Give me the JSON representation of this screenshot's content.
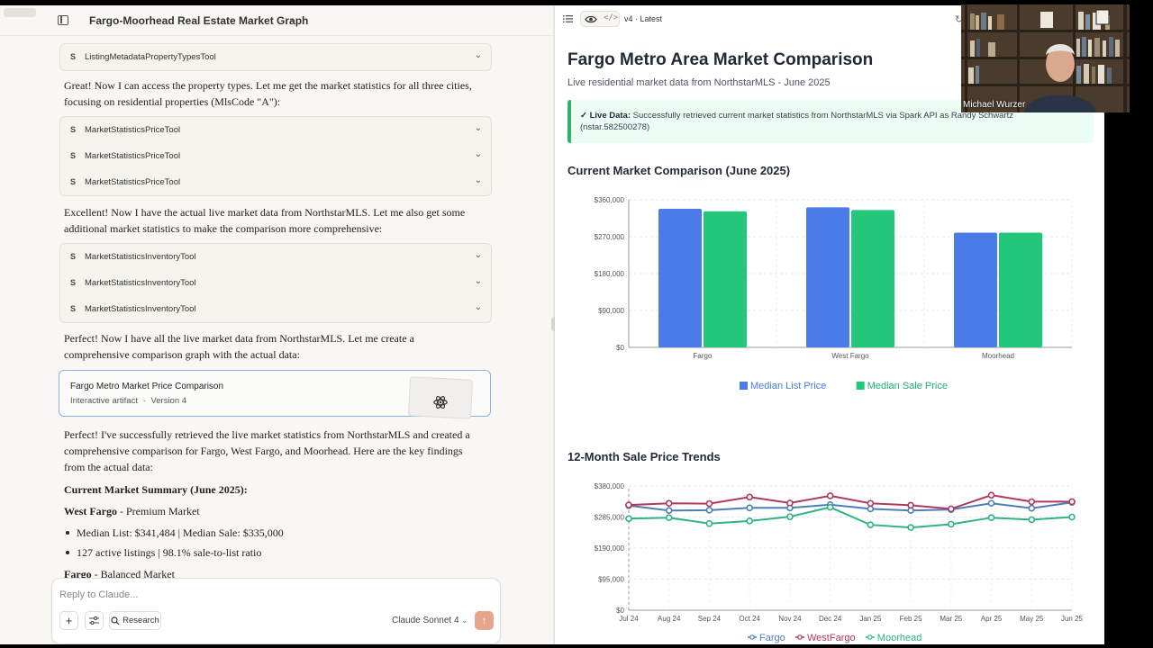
{
  "chat": {
    "title": "Fargo-Moorhead Real Estate Market Graph",
    "tool_groups": [
      {
        "tools": [
          "ListingMetadataPropertyTypesTool"
        ]
      },
      {
        "tools": [
          "MarketStatisticsPriceTool",
          "MarketStatisticsPriceTool",
          "MarketStatisticsPriceTool"
        ]
      },
      {
        "tools": [
          "MarketStatisticsInventoryTool",
          "MarketStatisticsInventoryTool",
          "MarketStatisticsInventoryTool"
        ]
      }
    ],
    "tool_prefix": "S",
    "messages": [
      "Great! Now I can access the property types. Let me get the market statistics for all three cities, focusing on residential properties (MlsCode \"A\"):",
      "Excellent! Now I have the actual live market data from NorthstarMLS. Let me also get some additional market statistics to make the comparison more comprehensive:",
      "Perfect! Now I have all the live market data from NorthstarMLS. Let me create a comprehensive comparison graph with the actual data:",
      "Perfect! I've successfully retrieved the live market statistics from NorthstarMLS and created a comprehensive comparison for Fargo, West Fargo, and Moorhead. Here are the key findings from the actual data:"
    ],
    "artifact": {
      "title": "Fargo Metro Market Price Comparison",
      "type": "Interactive artifact",
      "separator": "·",
      "version": "Version 4"
    },
    "summary_heading": "Current Market Summary (June 2025):",
    "west_fargo": {
      "name": "West Fargo",
      "tag": " - Premium Market",
      "bullets": [
        "Median List: $341,484 | Median Sale: $335,000",
        "127 active listings | 98.1% sale-to-list ratio"
      ]
    },
    "fargo": {
      "name": "Fargo",
      "tag": " - Balanced Market"
    },
    "composer": {
      "placeholder": "Reply to Claude...",
      "research_label": "Research",
      "model": "Claude Sonnet 4"
    }
  },
  "artifact_view": {
    "version_label": "v4 · Latest",
    "title": "Fargo Metro Area Market Comparison",
    "subtitle": "Live residential market data from NorthstarMLS - June 2025",
    "live_label": "✓ Live Data:",
    "live_text": " Successfully retrieved current market statistics from NorthstarMLS via Spark API as Randy Schwartz (nstar.582500278)",
    "bar_section_title": "Current Market Comparison (June 2025)",
    "line_section_title": "12-Month Sale Price Trends"
  },
  "webcam": {
    "name": "Michael Wurzer"
  },
  "colors": {
    "list_price": "#4a7be8",
    "sale_price": "#22c77a",
    "fargo": "#4f7dbb",
    "west_fargo": "#b03a5b",
    "moorhead": "#2fb385"
  },
  "chart_data": [
    {
      "type": "bar",
      "title": "Current Market Comparison (June 2025)",
      "categories": [
        "Fargo",
        "West Fargo",
        "Moorhead"
      ],
      "series": [
        {
          "name": "Median List Price",
          "values": [
            338000,
            341484,
            280000
          ]
        },
        {
          "name": "Median Sale Price",
          "values": [
            332000,
            335000,
            280000
          ]
        }
      ],
      "ylim": [
        0,
        360000
      ],
      "yticks": [
        "$0",
        "$90,000",
        "$180,000",
        "$270,000",
        "$360,000"
      ],
      "grid": true,
      "legend": "bottom"
    },
    {
      "type": "line",
      "title": "12-Month Sale Price Trends",
      "x": [
        "Jul 24",
        "Aug 24",
        "Sep 24",
        "Oct 24",
        "Nov 24",
        "Dec 24",
        "Jan 25",
        "Feb 25",
        "Mar 25",
        "Apr 25",
        "May 25",
        "Jun 25"
      ],
      "series": [
        {
          "name": "Fargo",
          "values": [
            320000,
            305000,
            306000,
            313000,
            313000,
            323000,
            310000,
            305000,
            308000,
            327000,
            312000,
            330000
          ]
        },
        {
          "name": "WestFargo",
          "values": [
            322000,
            327000,
            326000,
            346000,
            328000,
            350000,
            327000,
            321000,
            310000,
            352000,
            332000,
            332000
          ]
        },
        {
          "name": "Moorhead",
          "values": [
            280000,
            283000,
            265000,
            273000,
            286000,
            315000,
            261000,
            253000,
            263000,
            283000,
            277000,
            285000
          ]
        }
      ],
      "ylim": [
        0,
        380000
      ],
      "yticks": [
        "$0",
        "$95,000",
        "$190,000",
        "$285,000",
        "$380,000"
      ],
      "grid": true,
      "legend": "bottom"
    }
  ]
}
